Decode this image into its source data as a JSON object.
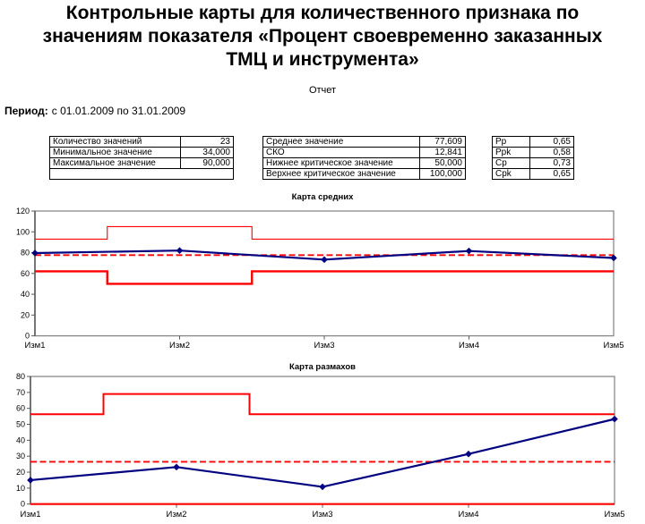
{
  "page": {
    "title_lines": [
      "Контрольные карты для количественного признака по",
      "значениям показателя «Процент своевременно заказанных",
      "ТМЦ и инструмента»"
    ],
    "report_label": "Отчет",
    "period_label": "Период:",
    "period_value": "с 01.01.2009 по 31.01.2009"
  },
  "stats_tables": [
    {
      "id": "sample-summary",
      "rows": [
        [
          "Количество значений",
          "23"
        ],
        [
          "Минимальное значение",
          "34,000"
        ],
        [
          "Максимальное значение",
          "90,000"
        ],
        [
          ""
        ]
      ]
    },
    {
      "id": "statistics",
      "rows": [
        [
          "Среднее значение",
          "77,609"
        ],
        [
          "СКО",
          "12,841"
        ],
        [
          "Нижнее критическое значение",
          "50,000"
        ],
        [
          "Верхнее критическое значение",
          "100,000"
        ]
      ]
    },
    {
      "id": "capability-indices",
      "rows": [
        [
          "Pp",
          "0,65"
        ],
        [
          "Ppk",
          "0,58"
        ],
        [
          "Cp",
          "0,73"
        ],
        [
          "Cpk",
          "0,65"
        ]
      ]
    }
  ],
  "colors": {
    "data_line": "#000080",
    "control_line": "#ff0000",
    "axis": "#808080",
    "tick": "#595959",
    "text": "#000000",
    "background": "#ffffff"
  },
  "chart_data": [
    {
      "type": "line",
      "title": "Карта средних",
      "categories": [
        "Изм1",
        "Изм2",
        "Изм3",
        "Изм4",
        "Изм5"
      ],
      "ylim": [
        0,
        120
      ],
      "ytick_step": 20,
      "grid": false,
      "legend": "none",
      "series": [
        {
          "id": "means",
          "role": "data",
          "values": [
            79.6,
            82.0,
            73.3,
            81.6,
            74.9
          ],
          "color": "#000080",
          "marker": "diamond",
          "width": 2.2
        },
        {
          "id": "center-line",
          "role": "center",
          "values": [
            77.6
          ],
          "color": "#ff0000",
          "dash": true,
          "width": 1.8
        },
        {
          "id": "upper-control-limit",
          "role": "limit",
          "values": [
            93,
            105,
            93,
            93,
            93
          ],
          "color": "#ff0000",
          "step": true,
          "width": 1.1
        },
        {
          "id": "lower-control-limit",
          "role": "limit",
          "values": [
            62,
            50,
            62,
            62,
            62
          ],
          "color": "#ff0000",
          "step": true,
          "width": 2.4
        }
      ]
    },
    {
      "type": "line",
      "title": "Карта размахов",
      "categories": [
        "Изм1",
        "Изм2",
        "Изм3",
        "Изм4",
        "Изм5"
      ],
      "ylim": [
        0,
        80
      ],
      "ytick_step": 10,
      "grid": false,
      "legend": "none",
      "series": [
        {
          "id": "ranges",
          "role": "data",
          "values": [
            15,
            23.2,
            10.8,
            31.4,
            53.3
          ],
          "color": "#000080",
          "marker": "diamond",
          "width": 2.2
        },
        {
          "id": "center-line",
          "role": "center",
          "values": [
            26.5
          ],
          "color": "#ff0000",
          "dash": true,
          "width": 1.8
        },
        {
          "id": "upper-control-limit",
          "role": "limit",
          "values": [
            56.3,
            69,
            56.3,
            56.3,
            56.3
          ],
          "color": "#ff0000",
          "step": true,
          "width": 2.0
        },
        {
          "id": "lower-control-limit",
          "role": "limit",
          "values": [
            0,
            0,
            0,
            0,
            0
          ],
          "color": "#ff0000",
          "step": true,
          "width": 2.2
        }
      ]
    }
  ]
}
